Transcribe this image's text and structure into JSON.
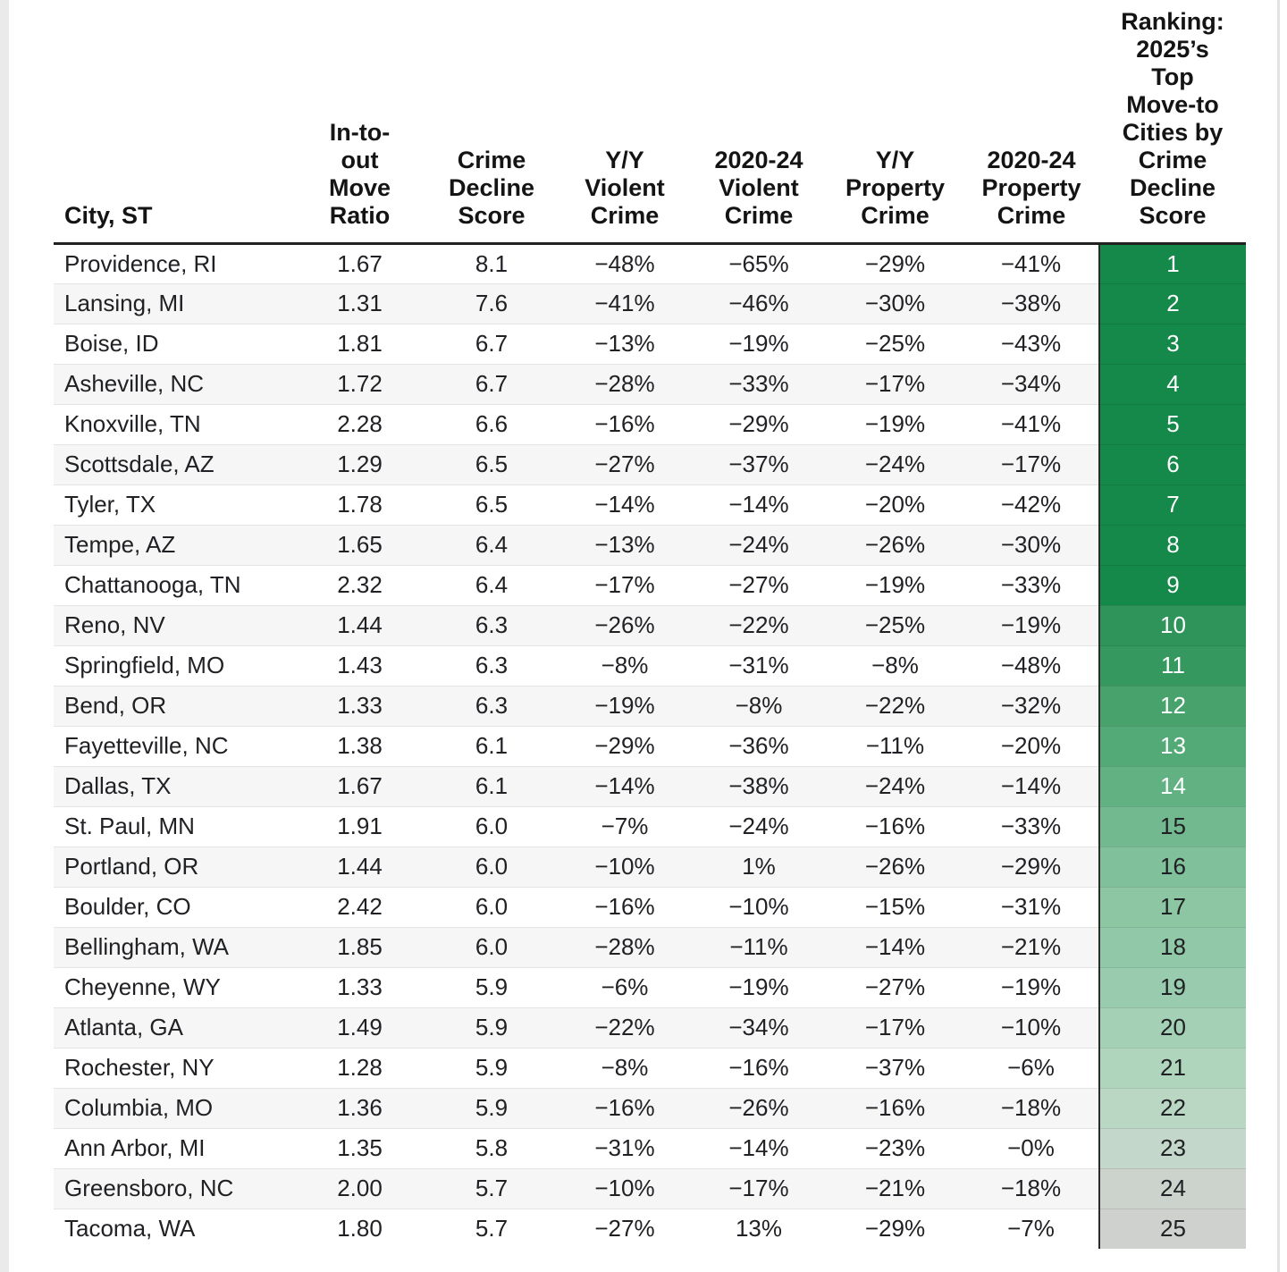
{
  "chart_data": {
    "type": "table",
    "title": "Ranking: 2025's Top Move-to Cities by Crime Decline Score",
    "rank_text_light": "#ffffff",
    "rank_text_dark": "#202124",
    "header_rule_color": "#212121",
    "row_stripe_color": "#f6f6f6",
    "columns": [
      {
        "id": "city",
        "label": "City, ST"
      },
      {
        "id": "move_ratio",
        "label": "In-to-\nout\nMove\nRatio"
      },
      {
        "id": "crime_decline_score",
        "label": "Crime\nDecline\nScore"
      },
      {
        "id": "yy_violent",
        "label": "Y/Y\nViolent\nCrime"
      },
      {
        "id": "violent_2020_24",
        "label": "2020-24\nViolent\nCrime"
      },
      {
        "id": "yy_property",
        "label": "Y/Y\nProperty\nCrime"
      },
      {
        "id": "property_2020_24",
        "label": "2020-24\nProperty\nCrime"
      },
      {
        "id": "rank",
        "label": "Ranking:\n2025’s\nTop\nMove-to\nCities by\nCrime\nDecline\nScore"
      }
    ],
    "rows": [
      {
        "city": "Providence, RI",
        "move_ratio": "1.67",
        "crime_decline_score": "8.1",
        "yy_violent": "−48%",
        "violent_2020_24": "−65%",
        "yy_property": "−29%",
        "property_2020_24": "−41%",
        "rank": "1",
        "rank_bg": "#15894a",
        "rank_fg": "light"
      },
      {
        "city": "Lansing, MI",
        "move_ratio": "1.31",
        "crime_decline_score": "7.6",
        "yy_violent": "−41%",
        "violent_2020_24": "−46%",
        "yy_property": "−30%",
        "property_2020_24": "−38%",
        "rank": "2",
        "rank_bg": "#15894a",
        "rank_fg": "light"
      },
      {
        "city": "Boise, ID",
        "move_ratio": "1.81",
        "crime_decline_score": "6.7",
        "yy_violent": "−13%",
        "violent_2020_24": "−19%",
        "yy_property": "−25%",
        "property_2020_24": "−43%",
        "rank": "3",
        "rank_bg": "#15894a",
        "rank_fg": "light"
      },
      {
        "city": "Asheville, NC",
        "move_ratio": "1.72",
        "crime_decline_score": "6.7",
        "yy_violent": "−28%",
        "violent_2020_24": "−33%",
        "yy_property": "−17%",
        "property_2020_24": "−34%",
        "rank": "4",
        "rank_bg": "#15894a",
        "rank_fg": "light"
      },
      {
        "city": "Knoxville, TN",
        "move_ratio": "2.28",
        "crime_decline_score": "6.6",
        "yy_violent": "−16%",
        "violent_2020_24": "−29%",
        "yy_property": "−19%",
        "property_2020_24": "−41%",
        "rank": "5",
        "rank_bg": "#15894a",
        "rank_fg": "light"
      },
      {
        "city": "Scottsdale, AZ",
        "move_ratio": "1.29",
        "crime_decline_score": "6.5",
        "yy_violent": "−27%",
        "violent_2020_24": "−37%",
        "yy_property": "−24%",
        "property_2020_24": "−17%",
        "rank": "6",
        "rank_bg": "#15894a",
        "rank_fg": "light"
      },
      {
        "city": "Tyler, TX",
        "move_ratio": "1.78",
        "crime_decline_score": "6.5",
        "yy_violent": "−14%",
        "violent_2020_24": "−14%",
        "yy_property": "−20%",
        "property_2020_24": "−42%",
        "rank": "7",
        "rank_bg": "#15894a",
        "rank_fg": "light"
      },
      {
        "city": "Tempe, AZ",
        "move_ratio": "1.65",
        "crime_decline_score": "6.4",
        "yy_violent": "−13%",
        "violent_2020_24": "−24%",
        "yy_property": "−26%",
        "property_2020_24": "−30%",
        "rank": "8",
        "rank_bg": "#15894a",
        "rank_fg": "light"
      },
      {
        "city": "Chattanooga, TN",
        "move_ratio": "2.32",
        "crime_decline_score": "6.4",
        "yy_violent": "−17%",
        "violent_2020_24": "−27%",
        "yy_property": "−19%",
        "property_2020_24": "−33%",
        "rank": "9",
        "rank_bg": "#15894a",
        "rank_fg": "light"
      },
      {
        "city": "Reno, NV",
        "move_ratio": "1.44",
        "crime_decline_score": "6.3",
        "yy_violent": "−26%",
        "violent_2020_24": "−22%",
        "yy_property": "−25%",
        "property_2020_24": "−19%",
        "rank": "10",
        "rank_bg": "#2f9459",
        "rank_fg": "light"
      },
      {
        "city": "Springfield, MO",
        "move_ratio": "1.43",
        "crime_decline_score": "6.3",
        "yy_violent": "−8%",
        "violent_2020_24": "−31%",
        "yy_property": "−8%",
        "property_2020_24": "−48%",
        "rank": "11",
        "rank_bg": "#35985e",
        "rank_fg": "light"
      },
      {
        "city": "Bend, OR",
        "move_ratio": "1.33",
        "crime_decline_score": "6.3",
        "yy_violent": "−19%",
        "violent_2020_24": "−8%",
        "yy_property": "−22%",
        "property_2020_24": "−32%",
        "rank": "12",
        "rank_bg": "#47a26b",
        "rank_fg": "light"
      },
      {
        "city": "Fayetteville, NC",
        "move_ratio": "1.38",
        "crime_decline_score": "6.1",
        "yy_violent": "−29%",
        "violent_2020_24": "−36%",
        "yy_property": "−11%",
        "property_2020_24": "−20%",
        "rank": "13",
        "rank_bg": "#54aa77",
        "rank_fg": "light"
      },
      {
        "city": "Dallas, TX",
        "move_ratio": "1.67",
        "crime_decline_score": "6.1",
        "yy_violent": "−14%",
        "violent_2020_24": "−38%",
        "yy_property": "−24%",
        "property_2020_24": "−14%",
        "rank": "14",
        "rank_bg": "#62b183",
        "rank_fg": "light"
      },
      {
        "city": "St. Paul, MN",
        "move_ratio": "1.91",
        "crime_decline_score": "6.0",
        "yy_violent": "−7%",
        "violent_2020_24": "−24%",
        "yy_property": "−16%",
        "property_2020_24": "−33%",
        "rank": "15",
        "rank_bg": "#72b98f",
        "rank_fg": "dark"
      },
      {
        "city": "Portland, OR",
        "move_ratio": "1.44",
        "crime_decline_score": "6.0",
        "yy_violent": "−10%",
        "violent_2020_24": "1%",
        "yy_property": "−26%",
        "property_2020_24": "−29%",
        "rank": "16",
        "rank_bg": "#80c09a",
        "rank_fg": "dark"
      },
      {
        "city": "Boulder, CO",
        "move_ratio": "2.42",
        "crime_decline_score": "6.0",
        "yy_violent": "−16%",
        "violent_2020_24": "−10%",
        "yy_property": "−15%",
        "property_2020_24": "−31%",
        "rank": "17",
        "rank_bg": "#8cc6a3",
        "rank_fg": "dark"
      },
      {
        "city": "Bellingham, WA",
        "move_ratio": "1.85",
        "crime_decline_score": "6.0",
        "yy_violent": "−28%",
        "violent_2020_24": "−11%",
        "yy_property": "−14%",
        "property_2020_24": "−21%",
        "rank": "18",
        "rank_bg": "#91c8a7",
        "rank_fg": "dark"
      },
      {
        "city": "Cheyenne, WY",
        "move_ratio": "1.33",
        "crime_decline_score": "5.9",
        "yy_violent": "−6%",
        "violent_2020_24": "−19%",
        "yy_property": "−27%",
        "property_2020_24": "−19%",
        "rank": "19",
        "rank_bg": "#99ccae",
        "rank_fg": "dark"
      },
      {
        "city": "Atlanta, GA",
        "move_ratio": "1.49",
        "crime_decline_score": "5.9",
        "yy_violent": "−22%",
        "violent_2020_24": "−34%",
        "yy_property": "−17%",
        "property_2020_24": "−10%",
        "rank": "20",
        "rank_bg": "#a4d1b5",
        "rank_fg": "dark"
      },
      {
        "city": "Rochester, NY",
        "move_ratio": "1.28",
        "crime_decline_score": "5.9",
        "yy_violent": "−8%",
        "violent_2020_24": "−16%",
        "yy_property": "−37%",
        "property_2020_24": "−6%",
        "rank": "21",
        "rank_bg": "#b0d5bd",
        "rank_fg": "dark"
      },
      {
        "city": "Columbia, MO",
        "move_ratio": "1.36",
        "crime_decline_score": "5.9",
        "yy_violent": "−16%",
        "violent_2020_24": "−26%",
        "yy_property": "−16%",
        "property_2020_24": "−18%",
        "rank": "22",
        "rank_bg": "#bad7c4",
        "rank_fg": "dark"
      },
      {
        "city": "Ann Arbor, MI",
        "move_ratio": "1.35",
        "crime_decline_score": "5.8",
        "yy_violent": "−31%",
        "violent_2020_24": "−14%",
        "yy_property": "−23%",
        "property_2020_24": "−0%",
        "rank": "23",
        "rank_bg": "#c3d7ca",
        "rank_fg": "dark"
      },
      {
        "city": "Greensboro, NC",
        "move_ratio": "2.00",
        "crime_decline_score": "5.7",
        "yy_violent": "−10%",
        "violent_2020_24": "−17%",
        "yy_property": "−21%",
        "property_2020_24": "−18%",
        "rank": "24",
        "rank_bg": "#cbd3cc",
        "rank_fg": "dark"
      },
      {
        "city": "Tacoma, WA",
        "move_ratio": "1.80",
        "crime_decline_score": "5.7",
        "yy_violent": "−27%",
        "violent_2020_24": "13%",
        "yy_property": "−29%",
        "property_2020_24": "−7%",
        "rank": "25",
        "rank_bg": "#cfd1cf",
        "rank_fg": "dark"
      }
    ]
  }
}
